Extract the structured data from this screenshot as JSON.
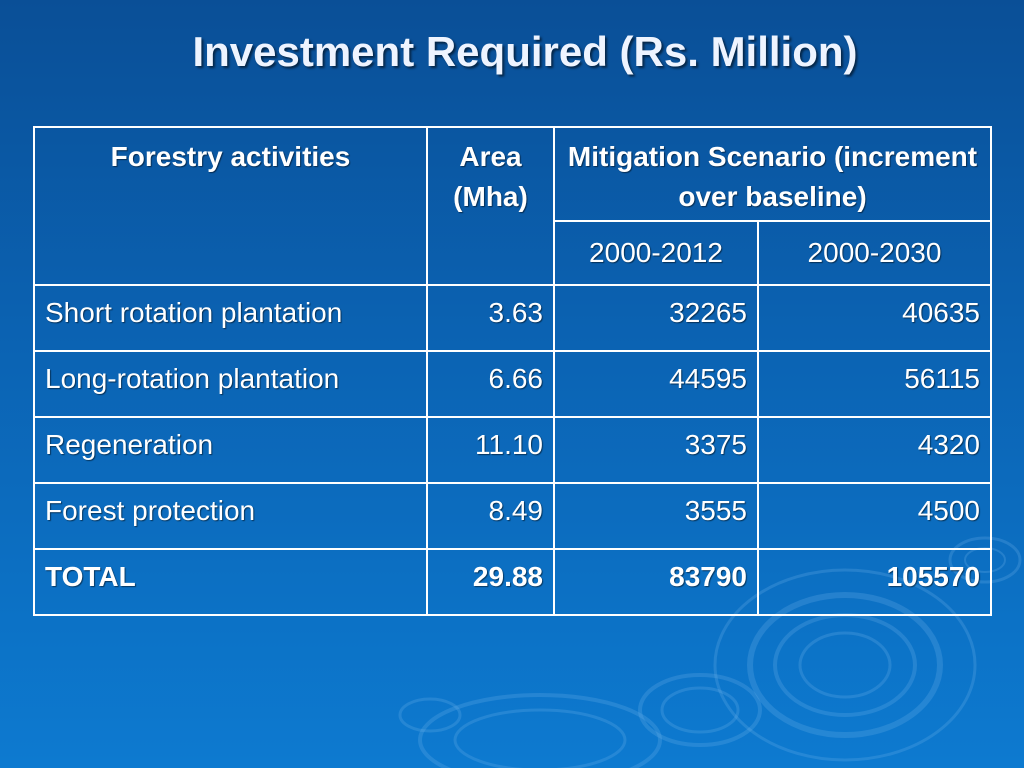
{
  "title": "Investment Required (Rs. Million)",
  "table": {
    "headers": {
      "activity": "Forestry activities",
      "area": "Area (Mha)",
      "scenario": "Mitigation Scenario (increment over baseline)",
      "period1": "2000-2012",
      "period2": "2000-2030"
    },
    "rows": [
      {
        "activity": "Short rotation plantation",
        "area": "3.63",
        "p1": "32265",
        "p2": "40635"
      },
      {
        "activity": "Long-rotation plantation",
        "area": "6.66",
        "p1": "44595",
        "p2": "56115"
      },
      {
        "activity": "Regeneration",
        "area": "11.10",
        "p1": "3375",
        "p2": "4320"
      },
      {
        "activity": "Forest protection",
        "area": "8.49",
        "p1": "3555",
        "p2": "4500"
      }
    ],
    "total": {
      "activity": "TOTAL",
      "area": "29.88",
      "p1": "83790",
      "p2": "105570"
    }
  },
  "colors": {
    "background_top": "#0a4f97",
    "background_bottom": "#0d7ad0",
    "text": "#ffffff",
    "grid": "#ffffff"
  }
}
